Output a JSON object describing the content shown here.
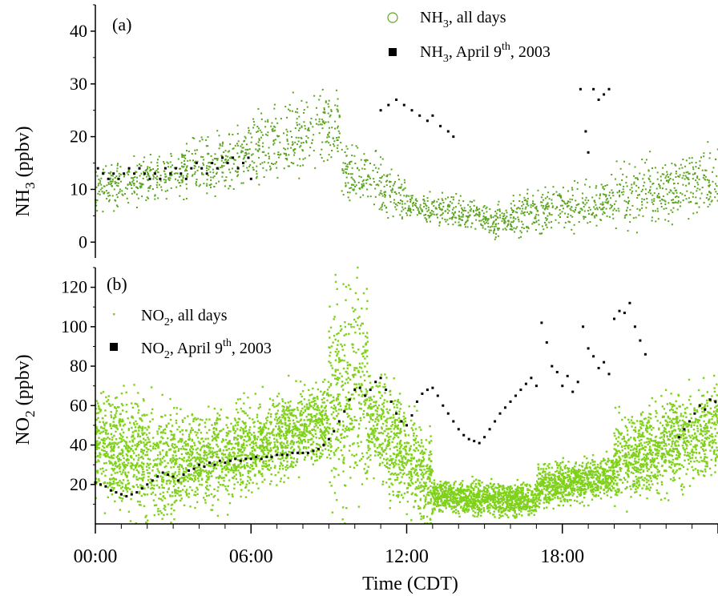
{
  "figure": {
    "xlabel": "Time (CDT)",
    "xticks": [
      "00:00",
      "06:00",
      "12:00",
      "18:00"
    ]
  },
  "colors": {
    "all_days_a": "#5aa51e",
    "all_days_b": "#7fd11a",
    "april": "#000000"
  },
  "chart_data": [
    {
      "type": "scatter",
      "panel_label": "(a)",
      "ylabel": "NH3 (ppbv)",
      "ylabel_main": "NH",
      "ylabel_sub": "3",
      "ylabel_tail": " (ppbv)",
      "xlim": [
        0,
        24
      ],
      "ylim": [
        -3,
        45
      ],
      "yticks": [
        0,
        10,
        20,
        30,
        40
      ],
      "legend_position": "top-right",
      "series": [
        {
          "name": "NH3, all days",
          "legend_main": "NH",
          "legend_sub": "3",
          "legend_tail": ", all days",
          "marker": "open-circle",
          "color": "#5aa51e",
          "bands": [
            {
              "x_start": 0.0,
              "x_end": 3.0,
              "y_start": 10,
              "y_end": 13,
              "spread": 4
            },
            {
              "x_start": 3.0,
              "x_end": 6.0,
              "y_start": 13,
              "y_end": 17,
              "spread": 5
            },
            {
              "x_start": 6.0,
              "x_end": 9.5,
              "y_start": 17,
              "y_end": 22,
              "spread": 7
            },
            {
              "x_start": 9.5,
              "x_end": 12.0,
              "y_start": 14,
              "y_end": 8,
              "spread": 5
            },
            {
              "x_start": 12.0,
              "x_end": 16.0,
              "y_start": 7,
              "y_end": 4,
              "spread": 3
            },
            {
              "x_start": 16.0,
              "x_end": 20.0,
              "y_start": 5,
              "y_end": 8,
              "spread": 4
            },
            {
              "x_start": 20.0,
              "x_end": 24.0,
              "y_start": 8,
              "y_end": 12,
              "spread": 6
            }
          ]
        },
        {
          "name": "NH3, April 9th, 2003",
          "legend_main": "NH",
          "legend_sub": "3",
          "legend_tail": ", April 9",
          "legend_sup": "th",
          "legend_end": ", 2003",
          "marker": "filled-square",
          "color": "#000000",
          "points": [
            [
              0.1,
              14
            ],
            [
              0.3,
              13
            ],
            [
              0.5,
              12
            ],
            [
              0.7,
              13
            ],
            [
              0.9,
              12
            ],
            [
              1.1,
              13
            ],
            [
              1.3,
              14
            ],
            [
              1.5,
              13
            ],
            [
              1.7,
              14
            ],
            [
              1.9,
              13
            ],
            [
              2.1,
              12
            ],
            [
              2.3,
              13
            ],
            [
              2.5,
              12
            ],
            [
              2.7,
              14
            ],
            [
              2.9,
              13
            ],
            [
              3.1,
              14
            ],
            [
              3.3,
              13
            ],
            [
              3.5,
              12
            ],
            [
              3.7,
              14
            ],
            [
              3.9,
              15
            ],
            [
              4.1,
              14
            ],
            [
              4.3,
              13
            ],
            [
              4.5,
              15
            ],
            [
              4.7,
              14
            ],
            [
              4.9,
              16
            ],
            [
              5.1,
              15
            ],
            [
              5.3,
              16
            ],
            [
              5.5,
              14
            ],
            [
              5.7,
              15
            ],
            [
              5.9,
              16
            ],
            [
              6.0,
              12
            ],
            [
              11.0,
              25
            ],
            [
              11.3,
              26
            ],
            [
              11.6,
              27
            ],
            [
              11.9,
              26
            ],
            [
              12.2,
              25
            ],
            [
              12.5,
              24
            ],
            [
              12.8,
              23
            ],
            [
              13.0,
              24
            ],
            [
              13.3,
              22
            ],
            [
              13.6,
              21
            ],
            [
              13.8,
              20
            ],
            [
              18.7,
              29
            ],
            [
              18.9,
              21
            ],
            [
              19.0,
              17
            ],
            [
              19.2,
              29
            ],
            [
              19.4,
              27
            ],
            [
              19.6,
              28
            ],
            [
              19.8,
              29
            ]
          ]
        }
      ]
    },
    {
      "type": "scatter",
      "panel_label": "(b)",
      "ylabel": "NO2 (ppbv)",
      "ylabel_main": "NO",
      "ylabel_sub": "2",
      "ylabel_tail": " (ppbv)",
      "xlim": [
        0,
        24
      ],
      "ylim": [
        0,
        130
      ],
      "yticks": [
        20,
        40,
        60,
        80,
        100,
        120
      ],
      "legend_position": "top-left",
      "series": [
        {
          "name": "NO2, all days",
          "legend_main": "NO",
          "legend_sub": "2",
          "legend_tail": ", all days",
          "marker": "small-dot",
          "color": "#7fd11a",
          "bands": [
            {
              "x_start": 0.0,
              "x_end": 3.0,
              "y_start": 40,
              "y_end": 30,
              "spread": 28
            },
            {
              "x_start": 3.0,
              "x_end": 6.0,
              "y_start": 30,
              "y_end": 38,
              "spread": 22
            },
            {
              "x_start": 6.0,
              "x_end": 9.0,
              "y_start": 38,
              "y_end": 55,
              "spread": 20
            },
            {
              "x_start": 9.0,
              "x_end": 10.5,
              "y_start": 60,
              "y_end": 70,
              "spread": 50
            },
            {
              "x_start": 10.5,
              "x_end": 13.0,
              "y_start": 55,
              "y_end": 20,
              "spread": 25
            },
            {
              "x_start": 13.0,
              "x_end": 17.0,
              "y_start": 14,
              "y_end": 12,
              "spread": 8
            },
            {
              "x_start": 17.0,
              "x_end": 20.0,
              "y_start": 18,
              "y_end": 25,
              "spread": 10
            },
            {
              "x_start": 20.0,
              "x_end": 24.0,
              "y_start": 30,
              "y_end": 50,
              "spread": 22
            }
          ]
        },
        {
          "name": "NO2, April 9th, 2003",
          "legend_main": "NO",
          "legend_sub": "2",
          "legend_tail": ", April 9",
          "legend_sup": "th",
          "legend_end": ", 2003",
          "marker": "filled-square",
          "color": "#000000",
          "points": [
            [
              0.0,
              21
            ],
            [
              0.2,
              20
            ],
            [
              0.4,
              19
            ],
            [
              0.6,
              17
            ],
            [
              0.8,
              16
            ],
            [
              1.0,
              15
            ],
            [
              1.2,
              14
            ],
            [
              1.4,
              15
            ],
            [
              1.6,
              16
            ],
            [
              1.8,
              18
            ],
            [
              2.0,
              20
            ],
            [
              2.2,
              22
            ],
            [
              2.4,
              24
            ],
            [
              2.6,
              26
            ],
            [
              2.8,
              25
            ],
            [
              3.0,
              24
            ],
            [
              3.2,
              22
            ],
            [
              3.4,
              25
            ],
            [
              3.6,
              27
            ],
            [
              3.8,
              28
            ],
            [
              4.0,
              30
            ],
            [
              4.2,
              29
            ],
            [
              4.4,
              31
            ],
            [
              4.6,
              30
            ],
            [
              4.8,
              32
            ],
            [
              5.0,
              31
            ],
            [
              5.2,
              32
            ],
            [
              5.4,
              33
            ],
            [
              5.6,
              32
            ],
            [
              5.8,
              33
            ],
            [
              6.0,
              33
            ],
            [
              6.2,
              34
            ],
            [
              6.4,
              33
            ],
            [
              6.6,
              34
            ],
            [
              6.8,
              34
            ],
            [
              7.0,
              35
            ],
            [
              7.2,
              35
            ],
            [
              7.4,
              35
            ],
            [
              7.6,
              36
            ],
            [
              7.8,
              36
            ],
            [
              8.0,
              36
            ],
            [
              8.2,
              36
            ],
            [
              8.4,
              37
            ],
            [
              8.6,
              38
            ],
            [
              8.8,
              40
            ],
            [
              9.0,
              43
            ],
            [
              9.2,
              47
            ],
            [
              9.4,
              52
            ],
            [
              9.6,
              57
            ],
            [
              9.8,
              63
            ],
            [
              10.0,
              68
            ],
            [
              10.2,
              69
            ],
            [
              10.4,
              65
            ],
            [
              10.6,
              68
            ],
            [
              10.8,
              72
            ],
            [
              11.0,
              74
            ],
            [
              11.2,
              68
            ],
            [
              11.4,
              62
            ],
            [
              11.6,
              56
            ],
            [
              11.8,
              52
            ],
            [
              12.0,
              50
            ],
            [
              12.2,
              55
            ],
            [
              12.4,
              62
            ],
            [
              12.6,
              66
            ],
            [
              12.8,
              68
            ],
            [
              13.0,
              69
            ],
            [
              13.2,
              65
            ],
            [
              13.4,
              60
            ],
            [
              13.6,
              56
            ],
            [
              13.8,
              52
            ],
            [
              14.0,
              48
            ],
            [
              14.2,
              45
            ],
            [
              14.4,
              43
            ],
            [
              14.6,
              42
            ],
            [
              14.8,
              41
            ],
            [
              15.0,
              44
            ],
            [
              15.2,
              48
            ],
            [
              15.4,
              52
            ],
            [
              15.6,
              56
            ],
            [
              15.8,
              59
            ],
            [
              16.0,
              62
            ],
            [
              16.2,
              65
            ],
            [
              16.4,
              68
            ],
            [
              16.6,
              71
            ],
            [
              16.8,
              74
            ],
            [
              17.0,
              70
            ],
            [
              17.2,
              102
            ],
            [
              17.4,
              92
            ],
            [
              17.6,
              80
            ],
            [
              17.8,
              77
            ],
            [
              18.0,
              70
            ],
            [
              18.2,
              75
            ],
            [
              18.4,
              67
            ],
            [
              18.6,
              72
            ],
            [
              18.8,
              100
            ],
            [
              19.0,
              89
            ],
            [
              19.2,
              85
            ],
            [
              19.4,
              79
            ],
            [
              19.6,
              82
            ],
            [
              19.8,
              76
            ],
            [
              20.0,
              104
            ],
            [
              20.2,
              108
            ],
            [
              20.4,
              107
            ],
            [
              20.6,
              112
            ],
            [
              20.8,
              100
            ],
            [
              21.0,
              93
            ],
            [
              21.2,
              86
            ],
            [
              22.5,
              44
            ],
            [
              22.7,
              48
            ],
            [
              22.9,
              52
            ],
            [
              23.1,
              56
            ],
            [
              23.3,
              60
            ],
            [
              23.5,
              58
            ],
            [
              23.7,
              63
            ],
            [
              23.9,
              62
            ]
          ]
        }
      ]
    }
  ]
}
